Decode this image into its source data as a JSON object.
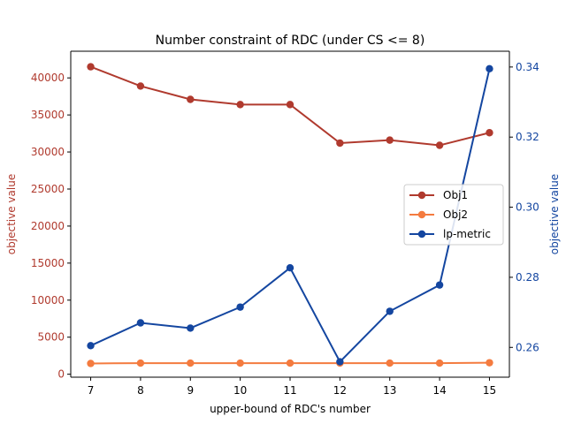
{
  "chart_data": {
    "type": "line",
    "title": "Number constraint of RDC (under CS <= 8)",
    "xlabel": "upper-bound of RDC's number",
    "ylabel_left": "objective value",
    "ylabel_right": "objective value",
    "x": [
      7,
      8,
      9,
      10,
      11,
      12,
      13,
      14,
      15
    ],
    "xlim": [
      6.6,
      15.4
    ],
    "ylim_left": [
      -400,
      43600
    ],
    "ylim_right": [
      0.2515,
      0.3445
    ],
    "xticks": [
      "7",
      "8",
      "9",
      "10",
      "11",
      "12",
      "13",
      "14",
      "15"
    ],
    "yticks_left": [
      0,
      5000,
      10000,
      15000,
      20000,
      25000,
      30000,
      35000,
      40000
    ],
    "yticks_right": [
      "0.26",
      "0.28",
      "0.30",
      "0.32",
      "0.34"
    ],
    "legend_position": "center-right",
    "grid": false,
    "series": [
      {
        "name": "Obj1",
        "axis": "left",
        "color": "#b03a2e",
        "values": [
          41500,
          38900,
          37100,
          36400,
          36400,
          31200,
          31600,
          30900,
          32600
        ]
      },
      {
        "name": "Obj2",
        "axis": "left",
        "color": "#f47b3f",
        "values": [
          1450,
          1500,
          1500,
          1500,
          1500,
          1500,
          1500,
          1500,
          1550
        ]
      },
      {
        "name": "lp-metric",
        "axis": "right",
        "color": "#1446a0",
        "values": [
          0.2605,
          0.267,
          0.2655,
          0.2715,
          0.2827,
          0.2559,
          0.2703,
          0.2778,
          0.3395
        ]
      }
    ]
  }
}
